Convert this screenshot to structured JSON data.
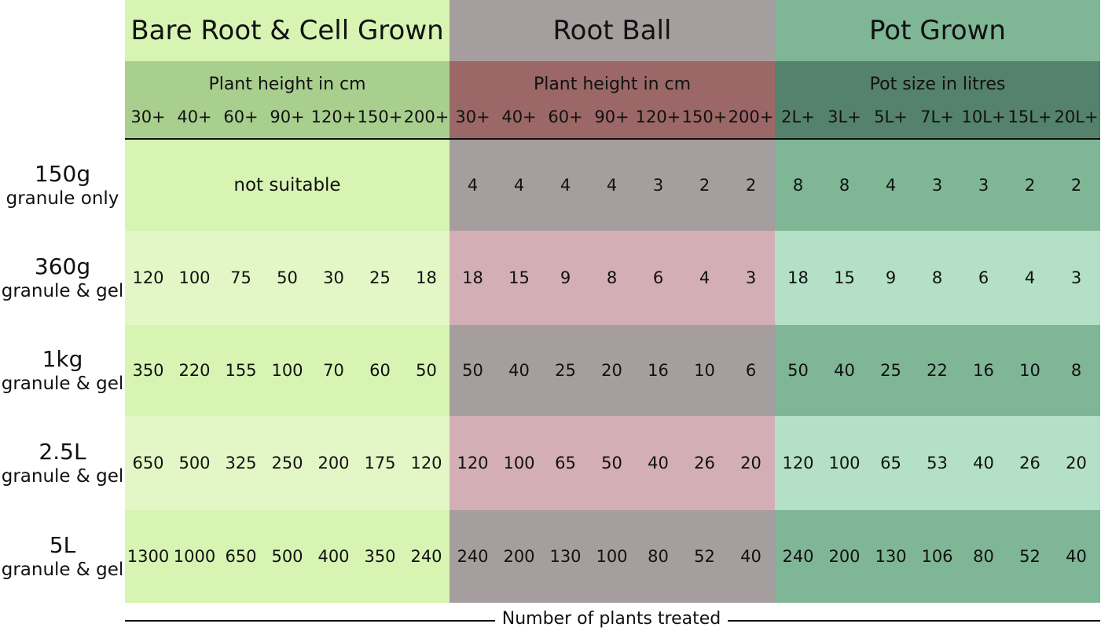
{
  "chart_data": {
    "type": "table",
    "footer_label": "Number of plants treated",
    "not_suitable_label": "not suitable",
    "groups": [
      {
        "title": "Bare Root & Cell Grown",
        "subtitle": "Plant height in cm",
        "columns": [
          "30+",
          "40+",
          "60+",
          "90+",
          "120+",
          "150+",
          "200+"
        ],
        "header_color": "#d7f4b3",
        "subheader_color": "#a9cf8f",
        "band_colors": [
          "#d7f4b3",
          "#e3f7c6"
        ]
      },
      {
        "title": "Root Ball",
        "subtitle": "Plant height in cm",
        "columns": [
          "30+",
          "40+",
          "60+",
          "90+",
          "120+",
          "150+",
          "200+"
        ],
        "header_color": "#a69e9e",
        "subheader_color": "#9b6767",
        "band_colors": [
          "#a69e9e",
          "#d4aeb5"
        ]
      },
      {
        "title": "Pot Grown",
        "subtitle": "Pot size in litres",
        "columns": [
          "2L+",
          "3L+",
          "5L+",
          "7L+",
          "10L+",
          "15L+",
          "20L+"
        ],
        "header_color": "#7fb696",
        "subheader_color": "#55826c",
        "band_colors": [
          "#7fb696",
          "#b3e0c6"
        ]
      }
    ],
    "rows": [
      {
        "size": "150g",
        "type": "granule only",
        "values": [
          null,
          null,
          null,
          null,
          null,
          null,
          null,
          4,
          4,
          4,
          4,
          3,
          2,
          2,
          8,
          8,
          4,
          3,
          3,
          2,
          2
        ]
      },
      {
        "size": "360g",
        "type": "granule & gel",
        "values": [
          120,
          100,
          75,
          50,
          30,
          25,
          18,
          18,
          15,
          9,
          8,
          6,
          4,
          3,
          18,
          15,
          9,
          8,
          6,
          4,
          3
        ]
      },
      {
        "size": "1kg",
        "type": "granule & gel",
        "values": [
          350,
          220,
          155,
          100,
          70,
          60,
          50,
          50,
          40,
          25,
          20,
          16,
          10,
          6,
          50,
          40,
          25,
          22,
          16,
          10,
          8
        ]
      },
      {
        "size": "2.5L",
        "type": "granule & gel",
        "values": [
          650,
          500,
          325,
          250,
          200,
          175,
          120,
          120,
          100,
          65,
          50,
          40,
          26,
          20,
          120,
          100,
          65,
          53,
          40,
          26,
          20
        ]
      },
      {
        "size": "5L",
        "type": "granule & gel",
        "values": [
          1300,
          1000,
          650,
          500,
          400,
          350,
          240,
          240,
          200,
          130,
          100,
          80,
          52,
          40,
          240,
          200,
          130,
          106,
          80,
          52,
          40
        ]
      }
    ]
  }
}
